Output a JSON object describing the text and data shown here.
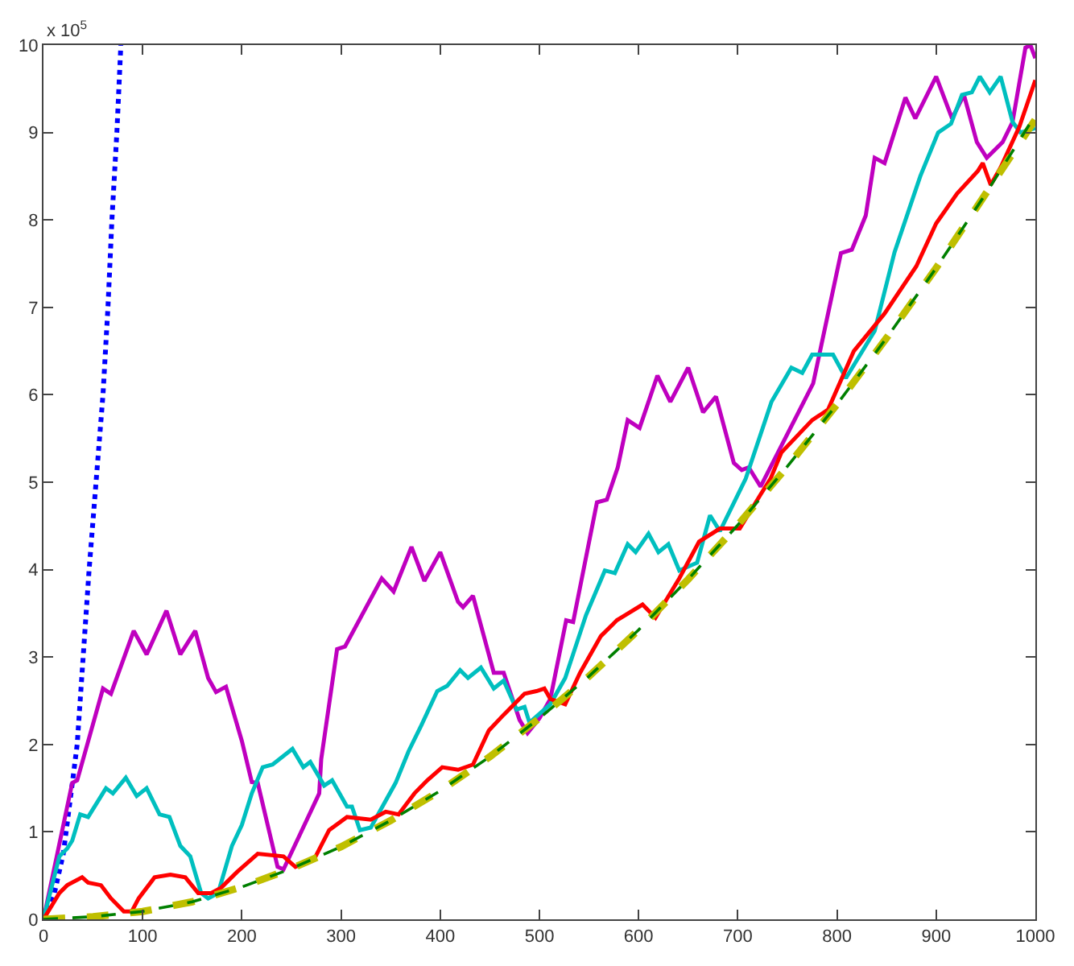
{
  "chart_data": {
    "type": "line",
    "annotations": [
      "x 10$^{5}$"
    ],
    "xlim": [
      0,
      1000
    ],
    "xticks": [
      0,
      100,
      200,
      300,
      400,
      500,
      600,
      700,
      800,
      900,
      1000
    ],
    "ylim": [
      0,
      10
    ],
    "yticks": [
      0,
      1,
      2,
      3,
      4,
      5,
      6,
      7,
      8,
      9,
      10
    ],
    "marker": "none",
    "series": [
      {
        "color": "#0000ff",
        "line_style": "dotted",
        "x": [
          0,
          10,
          20,
          29,
          34,
          40,
          46,
          53,
          60,
          65,
          69,
          74,
          78
        ],
        "values": [
          0,
          0.25,
          0.75,
          1.55,
          2,
          3,
          4,
          5,
          6,
          7,
          8,
          9,
          10
        ]
      },
      {
        "color": "#bf00bf",
        "line_style": "solid",
        "x": [
          0,
          29,
          34,
          60,
          68,
          91,
          104,
          124,
          138,
          153,
          166,
          174,
          184,
          200,
          210,
          216,
          236,
          242,
          278,
          280,
          296,
          304,
          341,
          353,
          371,
          384,
          400,
          418,
          423,
          433,
          454,
          464,
          480,
          488,
          500,
          511,
          527,
          534,
          558,
          568,
          579,
          589,
          601,
          619,
          632,
          650,
          665,
          678,
          696,
          704,
          711,
          723,
          776,
          804,
          815,
          829,
          838,
          848,
          869,
          879,
          900,
          916,
          928,
          941,
          951,
          967,
          977,
          990,
          995,
          1000
        ],
        "values": [
          0,
          1.56,
          1.59,
          2.64,
          2.58,
          3.3,
          3.03,
          3.53,
          3.03,
          3.3,
          2.76,
          2.6,
          2.66,
          2.04,
          1.57,
          1.56,
          0.6,
          0.57,
          1.44,
          1.83,
          3.09,
          3.12,
          3.9,
          3.75,
          4.26,
          3.87,
          4.2,
          3.63,
          3.57,
          3.7,
          2.82,
          2.82,
          2.28,
          2.13,
          2.3,
          2.52,
          3.42,
          3.4,
          4.77,
          4.8,
          5.17,
          5.71,
          5.62,
          6.22,
          5.92,
          6.31,
          5.8,
          5.98,
          5.22,
          5.14,
          5.17,
          4.95,
          6.13,
          7.62,
          7.66,
          8.05,
          8.71,
          8.65,
          9.4,
          9.16,
          9.64,
          9.16,
          9.43,
          8.89,
          8.71,
          8.89,
          9.12,
          9.97,
          10,
          9.85
        ]
      },
      {
        "color": "#00bfbf",
        "line_style": "solid",
        "x": [
          0,
          16,
          24,
          29,
          37,
          45,
          63,
          70,
          83,
          94,
          104,
          117,
          127,
          138,
          148,
          159,
          166,
          176,
          190,
          200,
          210,
          221,
          231,
          251,
          262,
          269,
          283,
          291,
          306,
          311,
          319,
          330,
          355,
          368,
          381,
          397,
          407,
          420,
          428,
          441,
          454,
          464,
          477,
          485,
          490,
          511,
          526,
          547,
          566,
          576,
          589,
          597,
          610,
          620,
          630,
          641,
          659,
          672,
          682,
          708,
          734,
          754,
          765,
          775,
          796,
          809,
          838,
          858,
          884,
          902,
          915,
          926,
          936,
          944,
          954,
          965,
          977,
          985,
          1000
        ],
        "values": [
          0,
          0.72,
          0.81,
          0.9,
          1.2,
          1.17,
          1.5,
          1.44,
          1.62,
          1.41,
          1.5,
          1.2,
          1.17,
          0.84,
          0.72,
          0.3,
          0.24,
          0.3,
          0.84,
          1.08,
          1.44,
          1.74,
          1.77,
          1.95,
          1.74,
          1.8,
          1.53,
          1.59,
          1.29,
          1.29,
          1.02,
          1.05,
          1.56,
          1.92,
          2.22,
          2.61,
          2.67,
          2.85,
          2.76,
          2.88,
          2.64,
          2.73,
          2.4,
          2.43,
          2.25,
          2.46,
          2.76,
          3.48,
          3.99,
          3.96,
          4.29,
          4.2,
          4.41,
          4.2,
          4.29,
          3.99,
          4.08,
          4.62,
          4.44,
          5.04,
          5.92,
          6.31,
          6.25,
          6.46,
          6.46,
          6.19,
          6.73,
          7.63,
          8.5,
          9.0,
          9.1,
          9.43,
          9.46,
          9.64,
          9.46,
          9.64,
          9.12,
          9.0,
          9.05
        ]
      },
      {
        "color": "#ff0000",
        "line_style": "solid",
        "x": [
          0,
          16,
          24,
          39,
          45,
          58,
          68,
          81,
          89,
          96,
          112,
          128,
          143,
          156,
          169,
          179,
          195,
          216,
          242,
          254,
          273,
          288,
          306,
          330,
          345,
          358,
          374,
          387,
          402,
          418,
          433,
          449,
          464,
          485,
          497,
          505,
          511,
          526,
          541,
          562,
          578,
          604,
          617,
          641,
          661,
          682,
          702,
          723,
          733,
          744,
          775,
          791,
          817,
          848,
          880,
          900,
          921,
          942,
          947,
          955,
          965,
          984,
          1000
        ],
        "values": [
          0,
          0.3,
          0.39,
          0.48,
          0.42,
          0.39,
          0.24,
          0.09,
          0.09,
          0.24,
          0.48,
          0.51,
          0.48,
          0.3,
          0.3,
          0.36,
          0.54,
          0.75,
          0.72,
          0.6,
          0.69,
          1.02,
          1.17,
          1.14,
          1.23,
          1.2,
          1.44,
          1.59,
          1.74,
          1.71,
          1.77,
          2.16,
          2.34,
          2.58,
          2.61,
          2.64,
          2.52,
          2.46,
          2.82,
          3.24,
          3.42,
          3.6,
          3.45,
          3.9,
          4.32,
          4.47,
          4.47,
          4.86,
          5.04,
          5.34,
          5.71,
          5.83,
          6.5,
          6.93,
          7.47,
          7.96,
          8.3,
          8.56,
          8.65,
          8.4,
          8.6,
          9.07,
          9.6
        ]
      },
      {
        "color": "#bfbf00",
        "line_style": "dashed",
        "x": [
          0,
          50,
          100,
          150,
          200,
          250,
          300,
          350,
          400,
          450,
          500,
          550,
          600,
          650,
          700,
          750,
          800,
          850,
          900,
          950,
          1000
        ],
        "values": [
          0,
          0.03,
          0.09,
          0.2,
          0.37,
          0.58,
          0.83,
          1.13,
          1.47,
          1.86,
          2.3,
          2.78,
          3.31,
          3.89,
          4.51,
          5.18,
          5.89,
          6.65,
          7.45,
          8.3,
          9.15
        ]
      },
      {
        "color": "#008000",
        "line_style": "dashed",
        "x": [
          0,
          50,
          100,
          150,
          200,
          250,
          300,
          350,
          400,
          450,
          500,
          550,
          600,
          650,
          700,
          750,
          800,
          850,
          900,
          950,
          1000
        ],
        "values": [
          0,
          0.03,
          0.09,
          0.2,
          0.37,
          0.58,
          0.83,
          1.13,
          1.47,
          1.86,
          2.3,
          2.78,
          3.31,
          3.89,
          4.51,
          5.18,
          5.89,
          6.65,
          7.45,
          8.3,
          9.2
        ]
      }
    ]
  }
}
